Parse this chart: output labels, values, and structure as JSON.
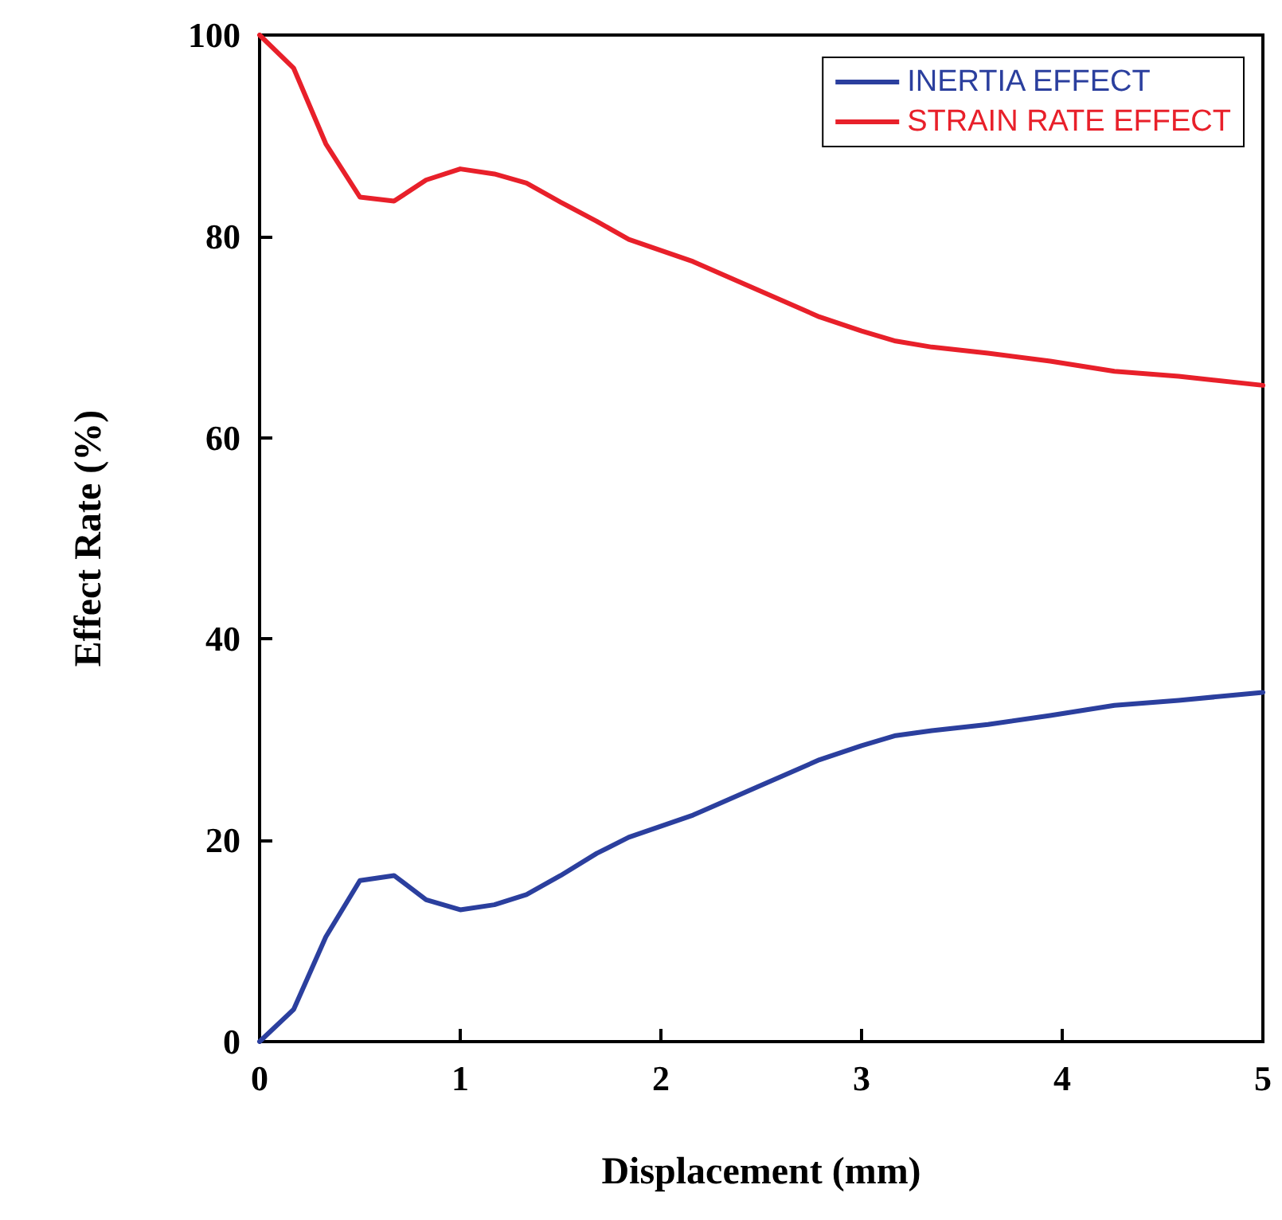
{
  "chart_data": {
    "type": "line",
    "xlabel": "Displacement (mm)",
    "ylabel": "Effect Rate (%)",
    "x": [
      0,
      0.17,
      0.33,
      0.5,
      0.67,
      0.83,
      1.0,
      1.17,
      1.33,
      1.5,
      1.68,
      1.84,
      2.16,
      2.48,
      2.79,
      3.0,
      3.17,
      3.35,
      3.63,
      3.94,
      4.26,
      4.58,
      5.0
    ],
    "series": [
      {
        "name": "INERTIA EFFECT",
        "color": "#2b3f9e",
        "values": [
          0,
          3.2,
          10.4,
          16.0,
          16.5,
          14.1,
          13.1,
          13.6,
          14.6,
          16.5,
          18.7,
          20.3,
          22.5,
          25.3,
          28.0,
          29.4,
          30.4,
          30.9,
          31.5,
          32.4,
          33.4,
          33.9,
          34.7
        ]
      },
      {
        "name": "STRAIN RATE EFFECT",
        "color": "#e8202a",
        "values": [
          100,
          96.7,
          89.2,
          83.9,
          83.5,
          85.6,
          86.7,
          86.2,
          85.3,
          83.4,
          81.5,
          79.7,
          77.5,
          74.7,
          72.0,
          70.6,
          69.6,
          69.0,
          68.4,
          67.6,
          66.6,
          66.1,
          65.2
        ]
      }
    ],
    "xlim": [
      0,
      5
    ],
    "xticks": [
      0,
      1,
      2,
      3,
      4,
      5
    ],
    "ylim": [
      0,
      100
    ],
    "yticks": [
      0,
      20,
      40,
      60,
      80,
      100
    ],
    "grid": false,
    "legend": "top right",
    "marker": "none",
    "line_style": "solid"
  }
}
